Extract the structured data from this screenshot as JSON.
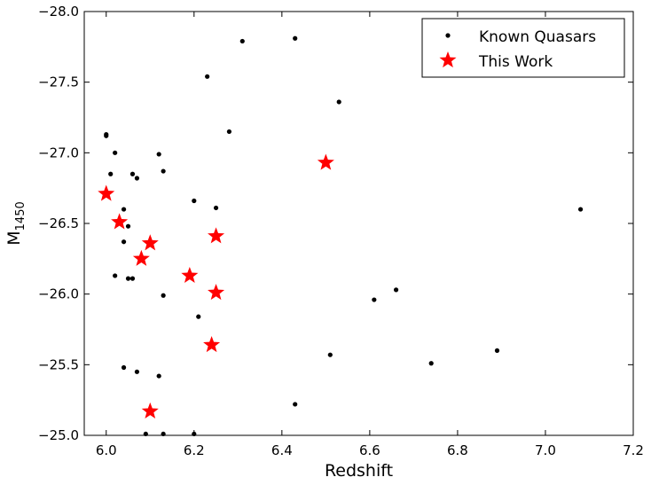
{
  "chart_data": {
    "type": "scatter",
    "xlabel": "Redshift",
    "ylabel_main": "M",
    "ylabel_sub": "1450",
    "xlim": [
      5.95,
      7.2
    ],
    "ylim": [
      -25.0,
      -28.0
    ],
    "y_inverted": true,
    "x_ticks": [
      6.0,
      6.2,
      6.4,
      6.6,
      6.8,
      7.0,
      7.2
    ],
    "x_tick_labels": [
      "6.0",
      "6.2",
      "6.4",
      "6.6",
      "6.8",
      "7.0",
      "7.2"
    ],
    "y_ticks": [
      -25.0,
      -25.5,
      -26.0,
      -26.5,
      -27.0,
      -27.5,
      -28.0
    ],
    "y_tick_labels": [
      "−25.0",
      "−25.5",
      "−26.0",
      "−26.5",
      "−27.0",
      "−27.5",
      "−28.0"
    ],
    "grid": false,
    "legend_position": "top-right",
    "series": [
      {
        "name": "Known Quasars",
        "marker": "dot",
        "color": "#000000",
        "points": [
          [
            6.31,
            -27.79
          ],
          [
            6.43,
            -27.81
          ],
          [
            6.23,
            -27.54
          ],
          [
            6.53,
            -27.36
          ],
          [
            6.28,
            -27.15
          ],
          [
            6.0,
            -27.13
          ],
          [
            6.0,
            -27.12
          ],
          [
            6.02,
            -27.0
          ],
          [
            6.12,
            -26.99
          ],
          [
            6.13,
            -26.87
          ],
          [
            6.01,
            -26.85
          ],
          [
            6.06,
            -26.85
          ],
          [
            6.07,
            -26.82
          ],
          [
            6.2,
            -26.66
          ],
          [
            6.25,
            -26.61
          ],
          [
            6.04,
            -26.6
          ],
          [
            6.05,
            -26.48
          ],
          [
            6.04,
            -26.37
          ],
          [
            6.02,
            -26.13
          ],
          [
            6.05,
            -26.11
          ],
          [
            6.06,
            -26.11
          ],
          [
            6.13,
            -25.99
          ],
          [
            6.21,
            -25.84
          ],
          [
            6.61,
            -25.96
          ],
          [
            6.66,
            -26.03
          ],
          [
            6.51,
            -25.57
          ],
          [
            6.74,
            -25.51
          ],
          [
            6.89,
            -25.6
          ],
          [
            6.04,
            -25.48
          ],
          [
            6.07,
            -25.45
          ],
          [
            6.12,
            -25.42
          ],
          [
            6.43,
            -25.22
          ],
          [
            6.09,
            -25.01
          ],
          [
            6.13,
            -25.01
          ],
          [
            6.2,
            -25.01
          ],
          [
            7.08,
            -26.6
          ]
        ]
      },
      {
        "name": "This Work",
        "marker": "star",
        "color": "#ff0000",
        "points": [
          [
            6.0,
            -26.71
          ],
          [
            6.03,
            -26.51
          ],
          [
            6.1,
            -26.36
          ],
          [
            6.25,
            -26.41
          ],
          [
            6.08,
            -26.25
          ],
          [
            6.19,
            -26.13
          ],
          [
            6.25,
            -26.01
          ],
          [
            6.5,
            -26.93
          ],
          [
            6.24,
            -25.64
          ],
          [
            6.1,
            -25.17
          ]
        ]
      }
    ]
  }
}
